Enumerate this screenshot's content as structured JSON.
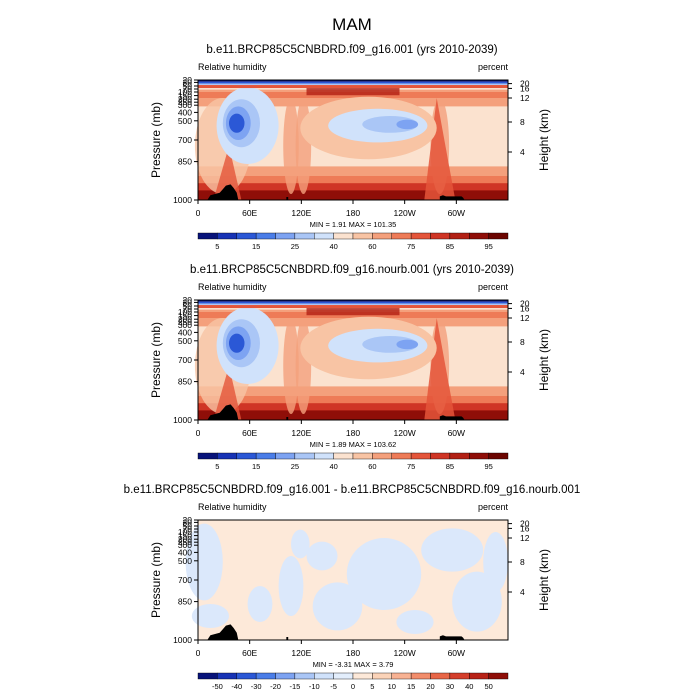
{
  "figure_title": "MAM",
  "chart_data": [
    {
      "type": "heatmap",
      "title": "b.e11.BRCP85C5CNBDRD.f09_g16.001 (yrs 2010-2039)",
      "left_label": "Relative humidity",
      "right_label": "percent",
      "ylabel": "Pressure (mb)",
      "y2label": "Height (km)",
      "xticks": [
        "0",
        "60E",
        "120E",
        "180",
        "120W",
        "60W"
      ],
      "yticks": [
        "20",
        "30",
        "50",
        "70",
        "100",
        "150",
        "200",
        "250",
        "300",
        "400",
        "500",
        "700",
        "850",
        "1000"
      ],
      "y2ticks": [
        "20",
        "16",
        "12",
        "8",
        "4"
      ],
      "stats": "MIN =   1.91  MAX = 101.35",
      "colorbar_labels": [
        "5",
        "15",
        "25",
        "40",
        "60",
        "75",
        "85",
        "95"
      ],
      "colorbar_colors": [
        "#08137a",
        "#1733b5",
        "#2b58d6",
        "#4a7de8",
        "#7da3f2",
        "#aac6f6",
        "#d0e2fb",
        "#fbe2cf",
        "#f8c4a4",
        "#f4a07c",
        "#ee7b57",
        "#e4553a",
        "#cf3525",
        "#b22014",
        "#8f0e08",
        "#6b0500"
      ]
    },
    {
      "type": "heatmap",
      "title": "b.e11.BRCP85C5CNBDRD.f09_g16.nourb.001 (yrs 2010-2039)",
      "left_label": "Relative humidity",
      "right_label": "percent",
      "ylabel": "Pressure (mb)",
      "y2label": "Height (km)",
      "xticks": [
        "0",
        "60E",
        "120E",
        "180",
        "120W",
        "60W"
      ],
      "yticks": [
        "20",
        "30",
        "50",
        "70",
        "100",
        "150",
        "200",
        "250",
        "300",
        "400",
        "500",
        "700",
        "850",
        "1000"
      ],
      "y2ticks": [
        "20",
        "16",
        "12",
        "8",
        "4"
      ],
      "stats": "MIN =   1.89  MAX = 103.62",
      "colorbar_labels": [
        "5",
        "15",
        "25",
        "40",
        "60",
        "75",
        "85",
        "95"
      ],
      "colorbar_colors": [
        "#08137a",
        "#1733b5",
        "#2b58d6",
        "#4a7de8",
        "#7da3f2",
        "#aac6f6",
        "#d0e2fb",
        "#fbe2cf",
        "#f8c4a4",
        "#f4a07c",
        "#ee7b57",
        "#e4553a",
        "#cf3525",
        "#b22014",
        "#8f0e08",
        "#6b0500"
      ]
    },
    {
      "type": "heatmap",
      "title": "b.e11.BRCP85C5CNBDRD.f09_g16.001 - b.e11.BRCP85C5CNBDRD.f09_g16.nourb.001",
      "left_label": "Relative humidity",
      "right_label": "percent",
      "ylabel": "Pressure (mb)",
      "y2label": "Height (km)",
      "xticks": [
        "0",
        "60E",
        "120E",
        "180",
        "120W",
        "60W"
      ],
      "yticks": [
        "20",
        "30",
        "50",
        "70",
        "100",
        "150",
        "200",
        "250",
        "300",
        "400",
        "500",
        "700",
        "850",
        "1000"
      ],
      "y2ticks": [
        "20",
        "16",
        "12",
        "8",
        "4"
      ],
      "stats": "MIN =  -3.31  MAX =   3.79",
      "colorbar_labels": [
        "-50",
        "-40",
        "-30",
        "-20",
        "-15",
        "-10",
        "-5",
        "0",
        "5",
        "10",
        "15",
        "20",
        "30",
        "40",
        "50"
      ],
      "colorbar_colors": [
        "#08137a",
        "#1733b5",
        "#2b58d6",
        "#4a7de8",
        "#7da3f2",
        "#aac6f6",
        "#d0e2fb",
        "#e3eefc",
        "#fde9d9",
        "#fbd3b8",
        "#f8b293",
        "#f28d6b",
        "#e86647",
        "#d43e2b",
        "#b82216",
        "#8f0e08"
      ]
    }
  ]
}
